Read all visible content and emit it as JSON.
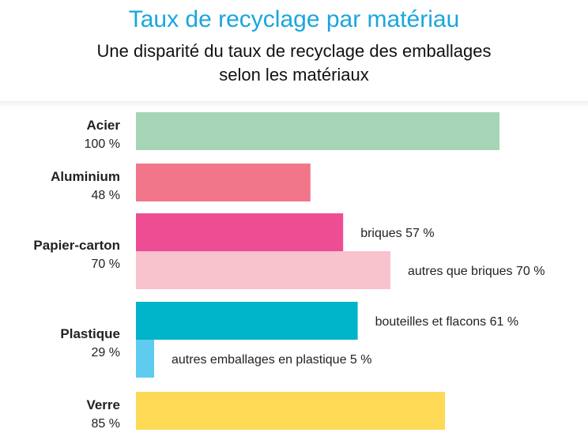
{
  "header": {
    "title": "Taux de recyclage par matériau",
    "subtitle_line1": "Une disparité du taux de recyclage des emballages",
    "subtitle_line2": "selon les matériaux"
  },
  "chart_data": {
    "type": "bar",
    "orientation": "horizontal",
    "xlim": [
      0,
      100
    ],
    "groups": [
      {
        "name": "Acier",
        "rate_label": "100 %",
        "bars": [
          {
            "value": 100,
            "label": "",
            "color": "#a6d5b5"
          }
        ]
      },
      {
        "name": "Aluminium",
        "rate_label": "48 %",
        "bars": [
          {
            "value": 48,
            "label": "",
            "color": "#f2768a"
          }
        ]
      },
      {
        "name": "Papier-carton",
        "rate_label": "70 %",
        "bars": [
          {
            "value": 57,
            "label": "briques 57 %",
            "color": "#ee4d93"
          },
          {
            "value": 70,
            "label": "autres que briques 70 %",
            "color": "#f8c3cd"
          }
        ]
      },
      {
        "name": "Plastique",
        "rate_label": "29 %",
        "bars": [
          {
            "value": 61,
            "label": "bouteilles et flacons 61 %",
            "color": "#00b4ca"
          },
          {
            "value": 5,
            "label": "autres emballages en plastique 5 %",
            "color": "#5fcbef"
          }
        ]
      },
      {
        "name": "Verre",
        "rate_label": "85 %",
        "bars": [
          {
            "value": 85,
            "label": "",
            "color": "#fdd955"
          }
        ]
      }
    ]
  }
}
